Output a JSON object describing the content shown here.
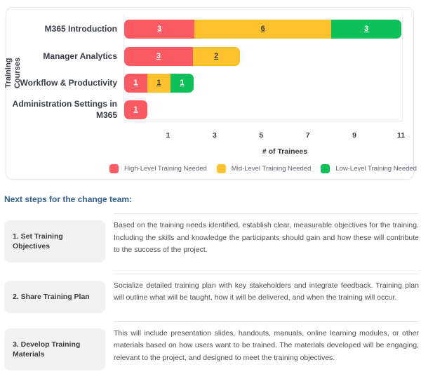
{
  "chart_data": {
    "type": "bar",
    "orientation": "horizontal",
    "stacked": true,
    "title": "",
    "xlabel": "# of Trainees",
    "ylabel": "Training Courses",
    "categories": [
      "M365 Introduction",
      "Manager Analytics",
      "Workflow & Productivity",
      "Administration Settings in M365"
    ],
    "series": [
      {
        "name": "High-Level Training Needed",
        "color": "#fb5c63",
        "label_color": "#ffffff",
        "values": [
          3,
          3,
          1,
          1
        ]
      },
      {
        "name": "Mid-Level Training Needed",
        "color": "#fdc22d",
        "label_color": "#3f3f3f",
        "values": [
          6,
          2,
          1,
          0
        ]
      },
      {
        "name": "Low-Level Training Needed",
        "color": "#0ec05a",
        "label_color": "#ffffff",
        "values": [
          3,
          0,
          1,
          0
        ]
      }
    ],
    "x_ticks": [
      1,
      3,
      5,
      7,
      9,
      11
    ],
    "xlim": [
      -0.9,
      11.1
    ],
    "grid": false,
    "legend_position": "bottom",
    "data_labels": "values shown underlined inside each segment"
  },
  "next_steps": {
    "heading": "Next steps for the change team:",
    "items": [
      {
        "title": "1. Set Training Objectives",
        "description": "Based on the training needs identified, establish clear, measurable objectives for the training. Including the skills and knowledge the participants should gain and how these will contribute to the success of the project."
      },
      {
        "title": "2. Share Training Plan",
        "description": "Socialize detailed training plan with key stakeholders and integrate feedback. Training plan will outline what will be taught, how it will be delivered, and when the training will occur."
      },
      {
        "title": "3. Develop Training Materials",
        "description": "This will include presentation slides, handouts, manuals, online learning modules, or other materials based on how users want to be trained. The materials developed will be engaging, relevant to the project, and designed to meet the training objectives."
      }
    ]
  },
  "colors": {
    "high_level": "#fb5c63",
    "mid_level": "#fdc22d",
    "low_level": "#0ec05a",
    "heading_blue": "#33608d",
    "axis_text": "#3b3f46",
    "step_label_bg": "#f2f2f2"
  }
}
